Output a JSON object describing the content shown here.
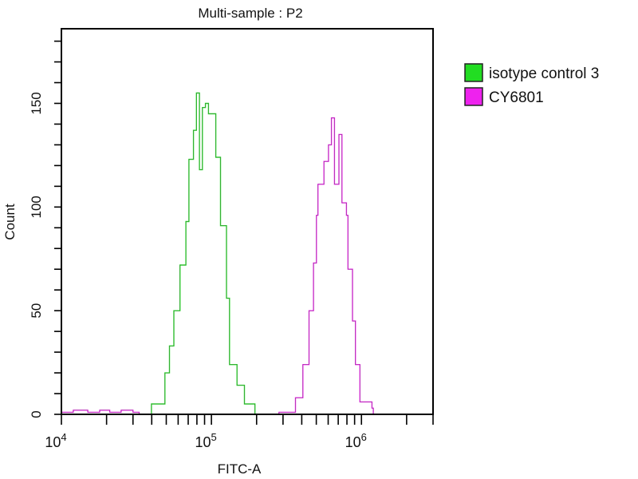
{
  "chart_data": {
    "type": "line",
    "title": "Multi-sample : P2",
    "xlabel": "FITC-A",
    "ylabel": "Count",
    "x_scale": "log",
    "xlim": [
      10000,
      3000000
    ],
    "ylim": [
      0,
      186
    ],
    "x_tick_labels": [
      {
        "value": 10000,
        "base": "10",
        "exp": "4"
      },
      {
        "value": 100000,
        "base": "10",
        "exp": "5"
      },
      {
        "value": 1000000,
        "base": "10",
        "exp": "6"
      }
    ],
    "y_ticks": [
      0,
      50,
      100,
      150
    ],
    "y_minor_step": 10,
    "grid": false,
    "legend_position": "right",
    "series": [
      {
        "name": "isotype control 3",
        "color": "#22dd22",
        "x": [
          35500,
          39800,
          49000,
          52500,
          56200,
          61700,
          67600,
          70800,
          75900,
          79400,
          83200,
          87100,
          91200,
          95500,
          107000,
          115000,
          126000,
          132000,
          148000,
          166000,
          195000
        ],
        "y": [
          0,
          5,
          20,
          33,
          50,
          72,
          93,
          123,
          137,
          155,
          118,
          148,
          150,
          145,
          124,
          91,
          56,
          24,
          14,
          5,
          0
        ]
      },
      {
        "name": "CY6801",
        "color": "#ee22ee",
        "x": [
          10000,
          12000,
          15000,
          18000,
          21000,
          25000,
          30000,
          33000,
          282000,
          363000,
          407000,
          447000,
          479000,
          501000,
          513000,
          562000,
          603000,
          631000,
          661000,
          708000,
          741000,
          794000,
          813000,
          871000,
          912000,
          977000,
          1175000,
          1200000
        ],
        "y": [
          1,
          2,
          1,
          2,
          1,
          2,
          1,
          0,
          1,
          8,
          24,
          50,
          73,
          96,
          111,
          122,
          130,
          143,
          111,
          135,
          102,
          96,
          70,
          45,
          24,
          6,
          3,
          0
        ]
      }
    ]
  }
}
